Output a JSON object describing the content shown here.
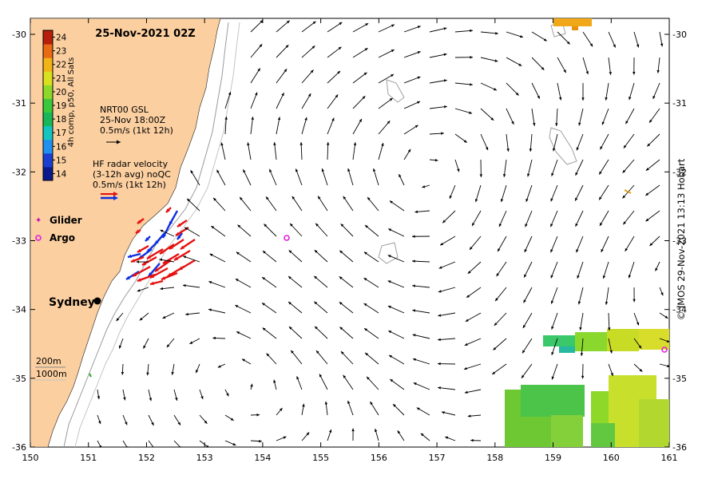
{
  "title": "25-Nov-2021 02Z",
  "credit": "© IMOS 29-Nov-2021 13:13 Hobart",
  "colorbar": {
    "label": "4h comp, p50, All Sats",
    "ticks": [
      "14",
      "15",
      "16",
      "17",
      "18",
      "19",
      "20",
      "21",
      "22",
      "23",
      "24"
    ],
    "colors": [
      "#0a1a8c",
      "#1a3fd0",
      "#1f8ff0",
      "#14c4c0",
      "#18b85a",
      "#3cc83c",
      "#8ed82a",
      "#d8e020",
      "#f0b418",
      "#e86a14",
      "#b81e0c"
    ]
  },
  "legend": {
    "gsl_title": "NRT00 GSL",
    "gsl_time": "25-Nov 18:00Z",
    "gsl_scale": "0.5m/s (1kt 12h)",
    "hf_title": "HF radar velocity",
    "hf_avg": "(3-12h avg) noQC",
    "hf_scale": "0.5m/s (1kt 12h)",
    "glider": "Glider",
    "argo": "Argo",
    "iso_200": "200m",
    "iso_1000": "1000m"
  },
  "city": "Sydney",
  "axes": {
    "x_ticks": [
      "150",
      "151",
      "152",
      "153",
      "154",
      "155",
      "156",
      "157",
      "158",
      "159",
      "160",
      "161"
    ],
    "y_ticks": [
      "-30",
      "-31",
      "-32",
      "-33",
      "-34",
      "-35",
      "-36"
    ]
  },
  "colors": {
    "land": "#fbcfa0",
    "ocean": "#ffffff",
    "radar_red": "#e61010",
    "radar_blue": "#1030e0",
    "argo": "#e020e0"
  }
}
